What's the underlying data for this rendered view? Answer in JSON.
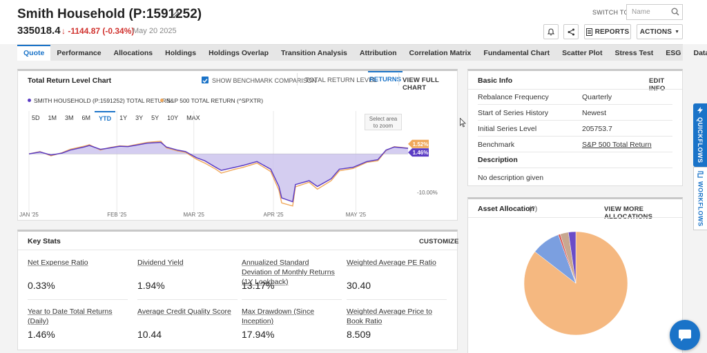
{
  "header": {
    "title": "Smith Household (P:1591252)",
    "price": "335018.4",
    "change": "↓ -1144.87 (-0.34%)",
    "date": "May 20 2025",
    "switch_label": "SWITCH TO:",
    "switch_placeholder": "Name",
    "reports_label": "REPORTS",
    "actions_label": "ACTIONS"
  },
  "tabs": [
    "Quote",
    "Performance",
    "Allocations",
    "Holdings",
    "Holdings Overlap",
    "Transition Analysis",
    "Attribution",
    "Correlation Matrix",
    "Fundamental Chart",
    "Scatter Plot",
    "Stress Test",
    "ESG",
    "Data"
  ],
  "chart_panel": {
    "title": "Total Return Level Chart",
    "benchmark_checkbox_label": "SHOW BENCHMARK COMPARISON",
    "mode_level": "TOTAL RETURN LEVEL",
    "mode_returns": "RETURNS",
    "view_full": "VIEW FULL CHART",
    "legend_portfolio": "SMITH HOUSEHOLD (P:1591252) TOTAL RETURN",
    "legend_benchmark": "S&P 500 TOTAL RETURN (^SPXTR)",
    "ranges": [
      "5D",
      "1M",
      "3M",
      "6M",
      "YTD",
      "1Y",
      "3Y",
      "5Y",
      "10Y",
      "MAX"
    ],
    "active_range": "YTD",
    "zoom_hint_line1": "Select area",
    "zoom_hint_line2": "to zoom",
    "benchmark_end_label": "1.52%",
    "portfolio_end_label": "1.46%",
    "y_tick": "-10.00%",
    "x_ticks": [
      "JAN '25",
      "FEB '25",
      "MAR '25",
      "APR '25",
      "MAY '25"
    ]
  },
  "chart_data": {
    "type": "area",
    "title": "Total Return Level Chart",
    "xlabel": "",
    "ylabel": "",
    "ylim": [
      -14,
      4
    ],
    "x": [
      "2025-01-02",
      "2025-01-06",
      "2025-01-10",
      "2025-01-14",
      "2025-01-17",
      "2025-01-22",
      "2025-01-24",
      "2025-01-28",
      "2025-01-31",
      "2025-02-04",
      "2025-02-07",
      "2025-02-11",
      "2025-02-14",
      "2025-02-19",
      "2025-02-21",
      "2025-02-25",
      "2025-02-28",
      "2025-03-04",
      "2025-03-07",
      "2025-03-11",
      "2025-03-13",
      "2025-03-18",
      "2025-03-21",
      "2025-03-26",
      "2025-03-31",
      "2025-04-03",
      "2025-04-04",
      "2025-04-08",
      "2025-04-09",
      "2025-04-14",
      "2025-04-17",
      "2025-04-22",
      "2025-04-25",
      "2025-04-30",
      "2025-05-05",
      "2025-05-09",
      "2025-05-12",
      "2025-05-15",
      "2025-05-20"
    ],
    "series": [
      {
        "name": "SMITH HOUSEHOLD (P:1591252) TOTAL RETURN",
        "values": [
          0.0,
          0.5,
          -0.3,
          0.2,
          1.0,
          1.8,
          2.2,
          1.2,
          1.5,
          2.0,
          1.9,
          2.4,
          2.8,
          3.0,
          1.8,
          1.0,
          0.6,
          -1.0,
          -1.8,
          -3.5,
          -4.3,
          -3.5,
          -3.0,
          -2.0,
          -4.0,
          -8.5,
          -11.5,
          -12.5,
          -8.0,
          -7.0,
          -8.5,
          -6.5,
          -4.0,
          -3.5,
          -2.0,
          -1.5,
          1.0,
          1.8,
          1.46
        ]
      },
      {
        "name": "S&P 500 TOTAL RETURN (^SPXTR)",
        "values": [
          0.0,
          0.6,
          -0.5,
          0.3,
          1.2,
          2.0,
          2.4,
          1.0,
          1.6,
          2.1,
          2.0,
          2.6,
          3.0,
          3.3,
          1.6,
          0.8,
          0.4,
          -1.4,
          -2.4,
          -4.0,
          -5.0,
          -4.0,
          -3.5,
          -2.4,
          -4.6,
          -9.5,
          -12.8,
          -13.6,
          -8.6,
          -7.4,
          -9.2,
          -7.0,
          -4.4,
          -3.8,
          -2.2,
          -1.8,
          0.9,
          1.9,
          1.52
        ]
      }
    ]
  },
  "basic_info": {
    "title": "Basic Info",
    "edit_label": "EDIT INFO",
    "rows": [
      {
        "key": "Rebalance Frequency",
        "value": "Quarterly"
      },
      {
        "key": "Start of Series History",
        "value": "Newest"
      },
      {
        "key": "Initial Series Level",
        "value": "205753.7"
      },
      {
        "key": "Benchmark",
        "value": "S&P 500 Total Return"
      }
    ],
    "description_heading": "Description",
    "description_text": "No description given"
  },
  "asset_allocation": {
    "title": "Asset Allocation",
    "help": "(?)",
    "view_more": "VIEW MORE ALLOCATIONS",
    "slices_percent": [
      {
        "value": 85.5,
        "color": "#f5b880"
      },
      {
        "value": 9.0,
        "color": "#7b9fe0"
      },
      {
        "value": 0.6,
        "color": "#d9534f"
      },
      {
        "value": 2.6,
        "color": "#c8a890"
      },
      {
        "value": 2.3,
        "color": "#6a4cc8"
      }
    ]
  },
  "key_stats": {
    "title": "Key Stats",
    "customize": "CUSTOMIZE",
    "stats": [
      {
        "label": "Net Expense Ratio",
        "value": "0.33%"
      },
      {
        "label": "Dividend Yield",
        "value": "1.94%"
      },
      {
        "label": "Annualized Standard Deviation of Monthly Returns (1Y Lookback)",
        "value": "13.17%"
      },
      {
        "label": "Weighted Average PE Ratio",
        "value": "30.40"
      },
      {
        "label": "Year to Date Total Returns (Daily)",
        "value": "1.46%"
      },
      {
        "label": "Average Credit Quality Score",
        "value": "10.44"
      },
      {
        "label": "Max Drawdown (Since Inception)",
        "value": "17.94%"
      },
      {
        "label": "Weighted Average Price to Book Ratio",
        "value": "8.509"
      }
    ]
  },
  "sidebar": {
    "quickflows": "QUICKFLOWS",
    "workflows": "WORKFLOWS"
  },
  "colors": {
    "portfolio": "#5b3cc4",
    "benchmark": "#f0a85a",
    "fill": "#c9c0ec",
    "accent": "#1a73c8",
    "negative": "#d0312d"
  }
}
